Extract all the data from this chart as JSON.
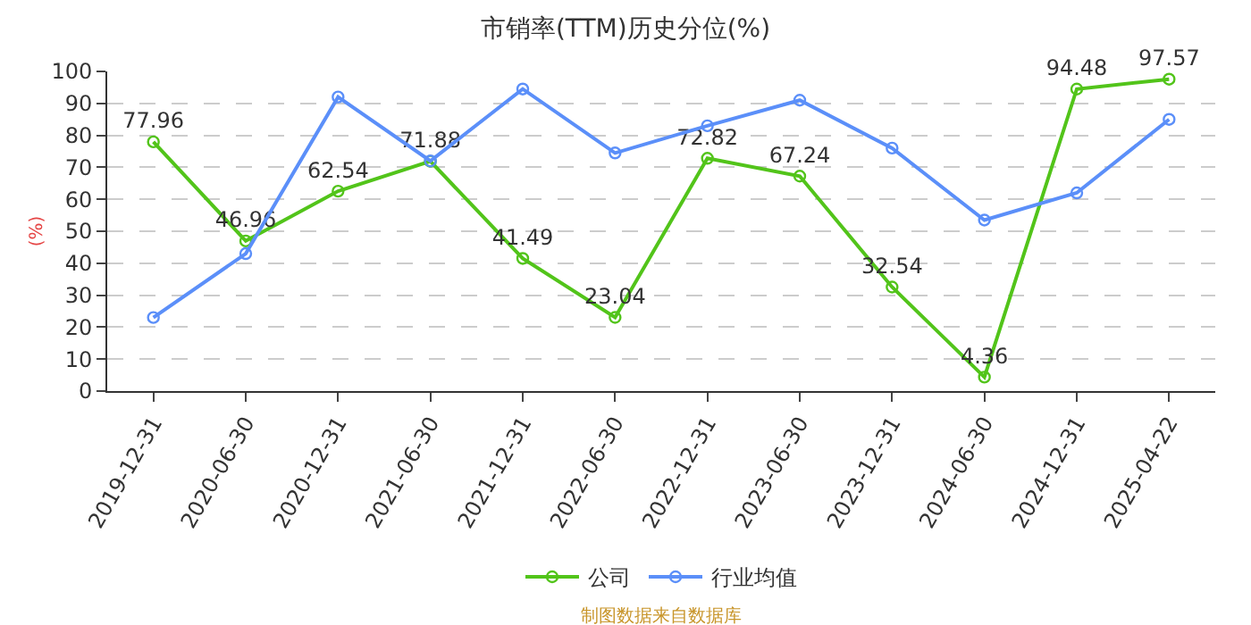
{
  "chart_data": {
    "type": "line",
    "title": "市销率(TTM)历史分位(%)",
    "ylabel": "(%)",
    "categories": [
      "2019-12-31",
      "2020-06-30",
      "2020-12-31",
      "2021-06-30",
      "2021-12-31",
      "2022-06-30",
      "2022-12-31",
      "2023-06-30",
      "2023-12-31",
      "2024-06-30",
      "2024-12-31",
      "2025-04-22"
    ],
    "series": [
      {
        "name": "公司",
        "color": "#52c41a",
        "values": [
          77.96,
          46.96,
          62.54,
          71.88,
          41.49,
          23.04,
          72.82,
          67.24,
          32.54,
          4.36,
          94.48,
          97.57
        ],
        "value_labels": [
          "77.96",
          "46.96",
          "62.54",
          "71.88",
          "41.49",
          "23.04",
          "72.82",
          "67.24",
          "32.54",
          "4.36",
          "94.48",
          "97.57"
        ]
      },
      {
        "name": "行业均值",
        "color": "#5b8ff9",
        "values": [
          23,
          43,
          92,
          72,
          94.5,
          74.5,
          83,
          91,
          76,
          53.5,
          62,
          85
        ]
      }
    ],
    "ylim": [
      0,
      100
    ],
    "yticks": [
      0,
      10,
      20,
      30,
      40,
      50,
      60,
      70,
      80,
      90,
      100
    ],
    "grid": "y",
    "legend": "bottom",
    "marker": "circle",
    "line_style": "solid",
    "annotations": [
      "制图数据来自数据库"
    ]
  }
}
